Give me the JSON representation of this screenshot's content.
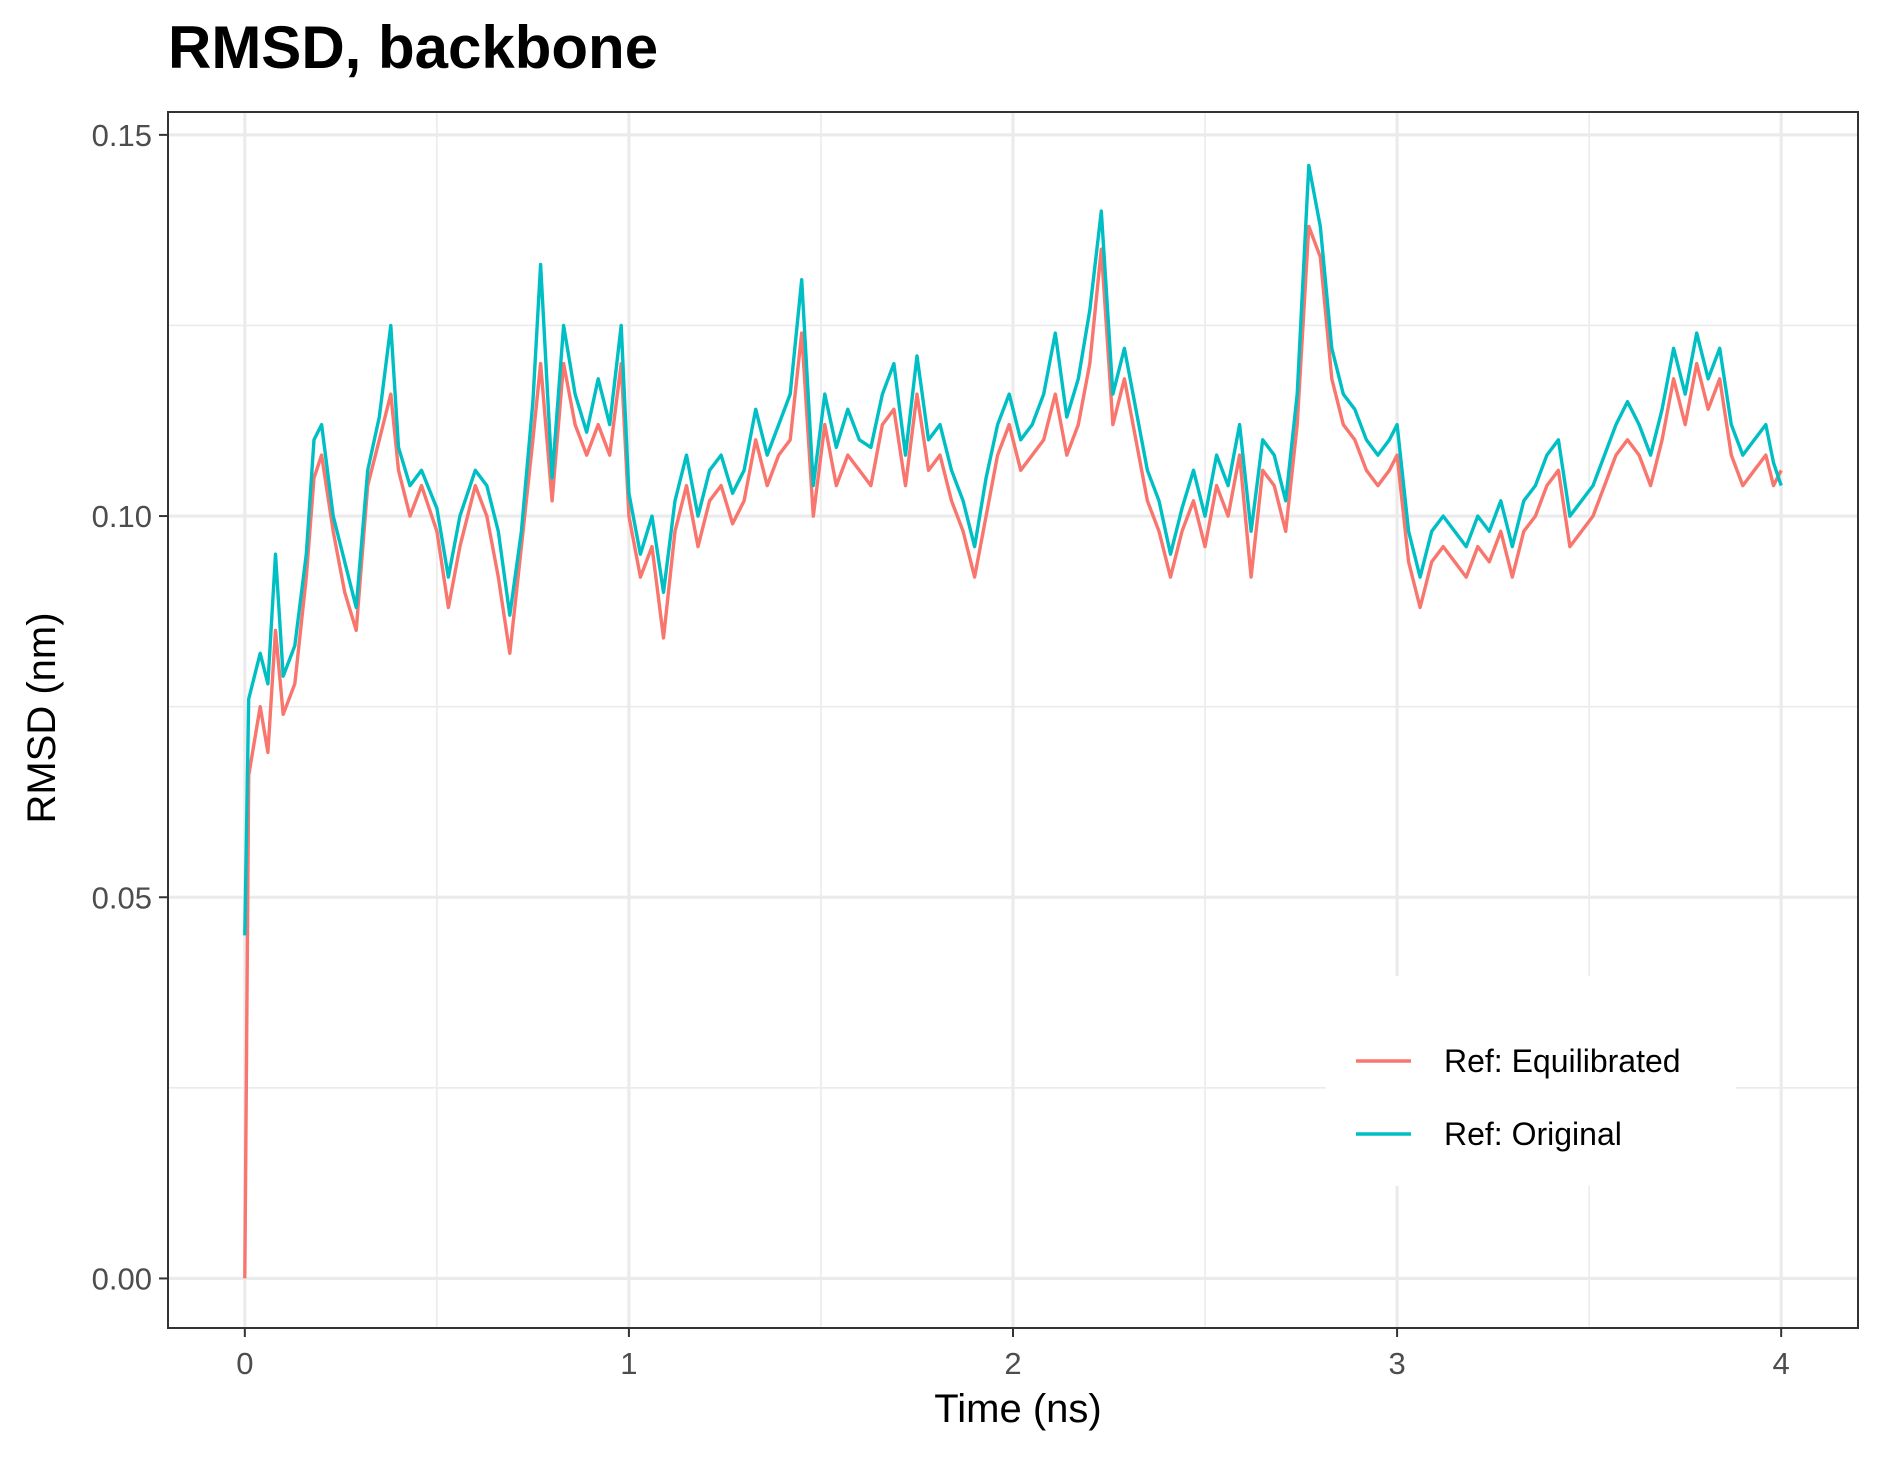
{
  "chart_data": {
    "type": "line",
    "title": "RMSD, backbone",
    "xlabel": "Time (ns)",
    "ylabel": "RMSD (nm)",
    "xlim": [
      -0.2,
      4.2
    ],
    "ylim": [
      -0.0065,
      0.153
    ],
    "x_ticks": [
      0,
      1,
      2,
      3,
      4
    ],
    "x_tick_labels": [
      "0",
      "1",
      "2",
      "3",
      "4"
    ],
    "y_ticks": [
      0.0,
      0.05,
      0.1,
      0.15
    ],
    "y_tick_labels": [
      "0.00",
      "0.05",
      "0.10",
      "0.15"
    ],
    "grid": true,
    "legend_position": "inside bottom-right",
    "x": [
      0.0,
      0.01,
      0.04,
      0.06,
      0.08,
      0.1,
      0.13,
      0.16,
      0.18,
      0.2,
      0.23,
      0.26,
      0.29,
      0.32,
      0.35,
      0.38,
      0.4,
      0.43,
      0.46,
      0.5,
      0.53,
      0.56,
      0.6,
      0.63,
      0.66,
      0.69,
      0.72,
      0.75,
      0.77,
      0.8,
      0.83,
      0.86,
      0.89,
      0.92,
      0.95,
      0.98,
      1.0,
      1.03,
      1.06,
      1.09,
      1.12,
      1.15,
      1.18,
      1.21,
      1.24,
      1.27,
      1.3,
      1.33,
      1.36,
      1.39,
      1.42,
      1.45,
      1.48,
      1.51,
      1.54,
      1.57,
      1.6,
      1.63,
      1.66,
      1.69,
      1.72,
      1.75,
      1.78,
      1.81,
      1.84,
      1.87,
      1.9,
      1.93,
      1.96,
      1.99,
      2.02,
      2.05,
      2.08,
      2.11,
      2.14,
      2.17,
      2.2,
      2.23,
      2.26,
      2.29,
      2.32,
      2.35,
      2.38,
      2.41,
      2.44,
      2.47,
      2.5,
      2.53,
      2.56,
      2.59,
      2.62,
      2.65,
      2.68,
      2.71,
      2.74,
      2.77,
      2.8,
      2.83,
      2.86,
      2.89,
      2.92,
      2.95,
      2.98,
      3.0,
      3.03,
      3.06,
      3.09,
      3.12,
      3.15,
      3.18,
      3.21,
      3.24,
      3.27,
      3.3,
      3.33,
      3.36,
      3.39,
      3.42,
      3.45,
      3.48,
      3.51,
      3.54,
      3.57,
      3.6,
      3.63,
      3.66,
      3.69,
      3.72,
      3.75,
      3.78,
      3.81,
      3.84,
      3.87,
      3.9,
      3.93,
      3.96,
      3.98,
      4.0
    ],
    "series": [
      {
        "name": "Ref: Equilibrated",
        "color": "#F8766D",
        "values": [
          0.0,
          0.066,
          0.075,
          0.069,
          0.085,
          0.074,
          0.078,
          0.092,
          0.105,
          0.108,
          0.098,
          0.09,
          0.085,
          0.104,
          0.11,
          0.116,
          0.106,
          0.1,
          0.104,
          0.098,
          0.088,
          0.096,
          0.104,
          0.1,
          0.092,
          0.082,
          0.096,
          0.11,
          0.12,
          0.102,
          0.12,
          0.112,
          0.108,
          0.112,
          0.108,
          0.12,
          0.1,
          0.092,
          0.096,
          0.084,
          0.098,
          0.104,
          0.096,
          0.102,
          0.104,
          0.099,
          0.102,
          0.11,
          0.104,
          0.108,
          0.11,
          0.124,
          0.1,
          0.112,
          0.104,
          0.108,
          0.106,
          0.104,
          0.112,
          0.114,
          0.104,
          0.116,
          0.106,
          0.108,
          0.102,
          0.098,
          0.092,
          0.1,
          0.108,
          0.112,
          0.106,
          0.108,
          0.11,
          0.116,
          0.108,
          0.112,
          0.12,
          0.135,
          0.112,
          0.118,
          0.11,
          0.102,
          0.098,
          0.092,
          0.098,
          0.102,
          0.096,
          0.104,
          0.1,
          0.108,
          0.092,
          0.106,
          0.104,
          0.098,
          0.112,
          0.138,
          0.134,
          0.118,
          0.112,
          0.11,
          0.106,
          0.104,
          0.106,
          0.108,
          0.094,
          0.088,
          0.094,
          0.096,
          0.094,
          0.092,
          0.096,
          0.094,
          0.098,
          0.092,
          0.098,
          0.1,
          0.104,
          0.106,
          0.096,
          0.098,
          0.1,
          0.104,
          0.108,
          0.11,
          0.108,
          0.104,
          0.11,
          0.118,
          0.112,
          0.12,
          0.114,
          0.118,
          0.108,
          0.104,
          0.106,
          0.108,
          0.104,
          0.106
        ]
      },
      {
        "name": "Ref: Original",
        "color": "#00BFC4",
        "values": [
          0.045,
          0.076,
          0.082,
          0.078,
          0.095,
          0.079,
          0.083,
          0.095,
          0.11,
          0.112,
          0.1,
          0.094,
          0.088,
          0.106,
          0.113,
          0.125,
          0.109,
          0.104,
          0.106,
          0.101,
          0.092,
          0.1,
          0.106,
          0.104,
          0.098,
          0.087,
          0.098,
          0.115,
          0.133,
          0.105,
          0.125,
          0.116,
          0.111,
          0.118,
          0.112,
          0.125,
          0.103,
          0.095,
          0.1,
          0.09,
          0.102,
          0.108,
          0.1,
          0.106,
          0.108,
          0.103,
          0.106,
          0.114,
          0.108,
          0.112,
          0.116,
          0.131,
          0.104,
          0.116,
          0.109,
          0.114,
          0.11,
          0.109,
          0.116,
          0.12,
          0.108,
          0.121,
          0.11,
          0.112,
          0.106,
          0.102,
          0.096,
          0.105,
          0.112,
          0.116,
          0.11,
          0.112,
          0.116,
          0.124,
          0.113,
          0.118,
          0.127,
          0.14,
          0.116,
          0.122,
          0.114,
          0.106,
          0.102,
          0.095,
          0.101,
          0.106,
          0.1,
          0.108,
          0.104,
          0.112,
          0.098,
          0.11,
          0.108,
          0.102,
          0.116,
          0.146,
          0.138,
          0.122,
          0.116,
          0.114,
          0.11,
          0.108,
          0.11,
          0.112,
          0.098,
          0.092,
          0.098,
          0.1,
          0.098,
          0.096,
          0.1,
          0.098,
          0.102,
          0.096,
          0.102,
          0.104,
          0.108,
          0.11,
          0.1,
          0.102,
          0.104,
          0.108,
          0.112,
          0.115,
          0.112,
          0.108,
          0.114,
          0.122,
          0.116,
          0.124,
          0.118,
          0.122,
          0.112,
          0.108,
          0.11,
          0.112,
          0.107,
          0.104
        ]
      }
    ]
  }
}
